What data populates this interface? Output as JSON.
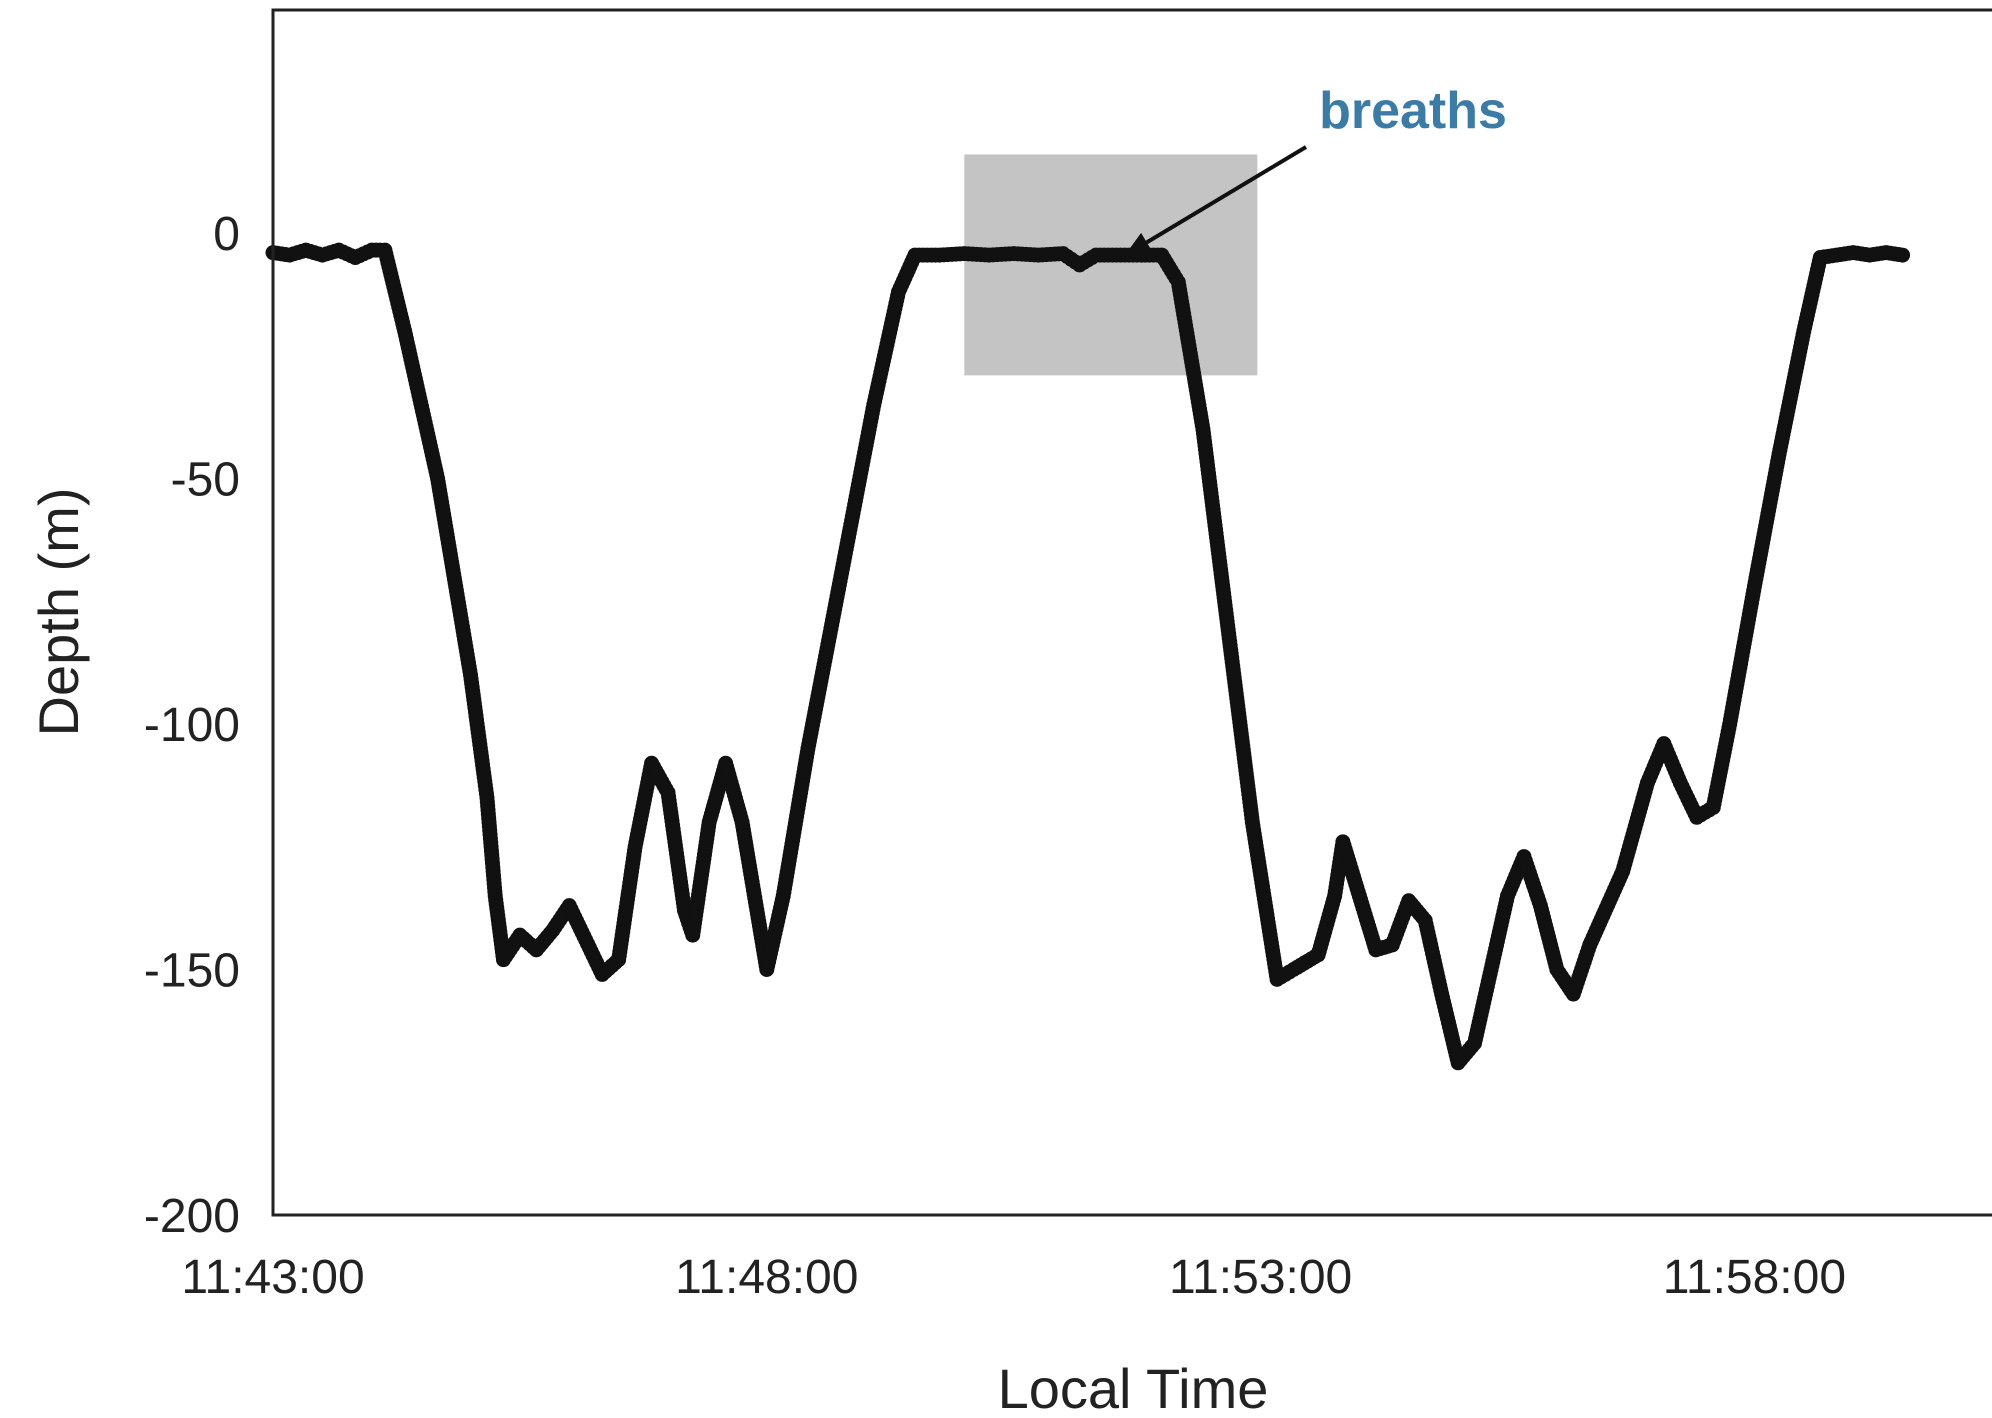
{
  "chart_data": {
    "type": "scatter",
    "xlabel": "Local Time",
    "ylabel": "Depth (m)",
    "x_unit": "local time (HH:MM:SS)",
    "xlim": [
      "11:43:00",
      "11:59:30"
    ],
    "ylim": [
      -200,
      45
    ],
    "x_ticks": [
      "11:43:00",
      "11:48:00",
      "11:53:00",
      "11:58:00"
    ],
    "y_ticks": [
      0,
      -50,
      -100,
      -150,
      -200
    ],
    "grid": false,
    "legend": "none",
    "marker_color": "#111111",
    "series": [
      {
        "points": [
          [
            "11:43:00",
            -4
          ],
          [
            "11:43:10",
            -4.5
          ],
          [
            "11:43:20",
            -3.5
          ],
          [
            "11:43:30",
            -4.5
          ],
          [
            "11:43:40",
            -3.5
          ],
          [
            "11:43:50",
            -5
          ],
          [
            "11:44:00",
            -3.5
          ],
          [
            "11:44:08",
            -3.5
          ],
          [
            "11:44:20",
            -20
          ],
          [
            "11:44:40",
            -50
          ],
          [
            "11:45:00",
            -90
          ],
          [
            "11:45:10",
            -115
          ],
          [
            "11:45:15",
            -135
          ],
          [
            "11:45:20",
            -148
          ],
          [
            "11:45:30",
            -143
          ],
          [
            "11:45:40",
            -146
          ],
          [
            "11:45:50",
            -142
          ],
          [
            "11:46:00",
            -137
          ],
          [
            "11:46:10",
            -144
          ],
          [
            "11:46:20",
            -151
          ],
          [
            "11:46:30",
            -148
          ],
          [
            "11:46:40",
            -125
          ],
          [
            "11:46:50",
            -108
          ],
          [
            "11:47:00",
            -114
          ],
          [
            "11:47:10",
            -138
          ],
          [
            "11:47:15",
            -143
          ],
          [
            "11:47:25",
            -120
          ],
          [
            "11:47:35",
            -108
          ],
          [
            "11:47:45",
            -120
          ],
          [
            "11:48:00",
            -150
          ],
          [
            "11:48:10",
            -135
          ],
          [
            "11:48:25",
            -105
          ],
          [
            "11:48:45",
            -70
          ],
          [
            "11:49:05",
            -35
          ],
          [
            "11:49:20",
            -12
          ],
          [
            "11:49:30",
            -4.5
          ],
          [
            "11:49:45",
            -4.5
          ],
          [
            "11:50:00",
            -4.2
          ],
          [
            "11:50:15",
            -4.5
          ],
          [
            "11:50:30",
            -4.2
          ],
          [
            "11:50:45",
            -4.5
          ],
          [
            "11:51:00",
            -4.2
          ],
          [
            "11:51:10",
            -6.5
          ],
          [
            "11:51:20",
            -4.5
          ],
          [
            "11:51:35",
            -4.5
          ],
          [
            "11:51:50",
            -4.5
          ],
          [
            "11:52:00",
            -4.5
          ],
          [
            "11:52:10",
            -10
          ],
          [
            "11:52:25",
            -40
          ],
          [
            "11:52:40",
            -80
          ],
          [
            "11:52:55",
            -120
          ],
          [
            "11:53:10",
            -152
          ],
          [
            "11:53:20",
            -150
          ],
          [
            "11:53:35",
            -147
          ],
          [
            "11:53:45",
            -135
          ],
          [
            "11:53:50",
            -124
          ],
          [
            "11:54:00",
            -135
          ],
          [
            "11:54:10",
            -146
          ],
          [
            "11:54:20",
            -145
          ],
          [
            "11:54:30",
            -136
          ],
          [
            "11:54:40",
            -140
          ],
          [
            "11:54:50",
            -155
          ],
          [
            "11:55:00",
            -169
          ],
          [
            "11:55:10",
            -165
          ],
          [
            "11:55:20",
            -150
          ],
          [
            "11:55:30",
            -135
          ],
          [
            "11:55:40",
            -127
          ],
          [
            "11:55:50",
            -137
          ],
          [
            "11:56:00",
            -150
          ],
          [
            "11:56:10",
            -155
          ],
          [
            "11:56:20",
            -145
          ],
          [
            "11:56:40",
            -130
          ],
          [
            "11:56:55",
            -112
          ],
          [
            "11:57:05",
            -104
          ],
          [
            "11:57:15",
            -112
          ],
          [
            "11:57:25",
            -119
          ],
          [
            "11:57:35",
            -117
          ],
          [
            "11:57:45",
            -100
          ],
          [
            "11:58:00",
            -72
          ],
          [
            "11:58:15",
            -45
          ],
          [
            "11:58:30",
            -20
          ],
          [
            "11:58:40",
            -5
          ],
          [
            "11:58:50",
            -4.5
          ],
          [
            "11:59:00",
            -4
          ],
          [
            "11:59:10",
            -4.5
          ],
          [
            "11:59:20",
            -4
          ],
          [
            "11:59:30",
            -4.5
          ]
        ]
      }
    ],
    "highlight_region": {
      "x_start": "11:50:00",
      "x_end": "11:52:58",
      "y_top": 16,
      "y_bottom": -29,
      "color": "#b3b3b3"
    },
    "annotations": [
      {
        "text": "breaths",
        "color": "#3a7ca5",
        "arrow_to": [
          "11:51:30",
          -3
        ]
      }
    ]
  }
}
